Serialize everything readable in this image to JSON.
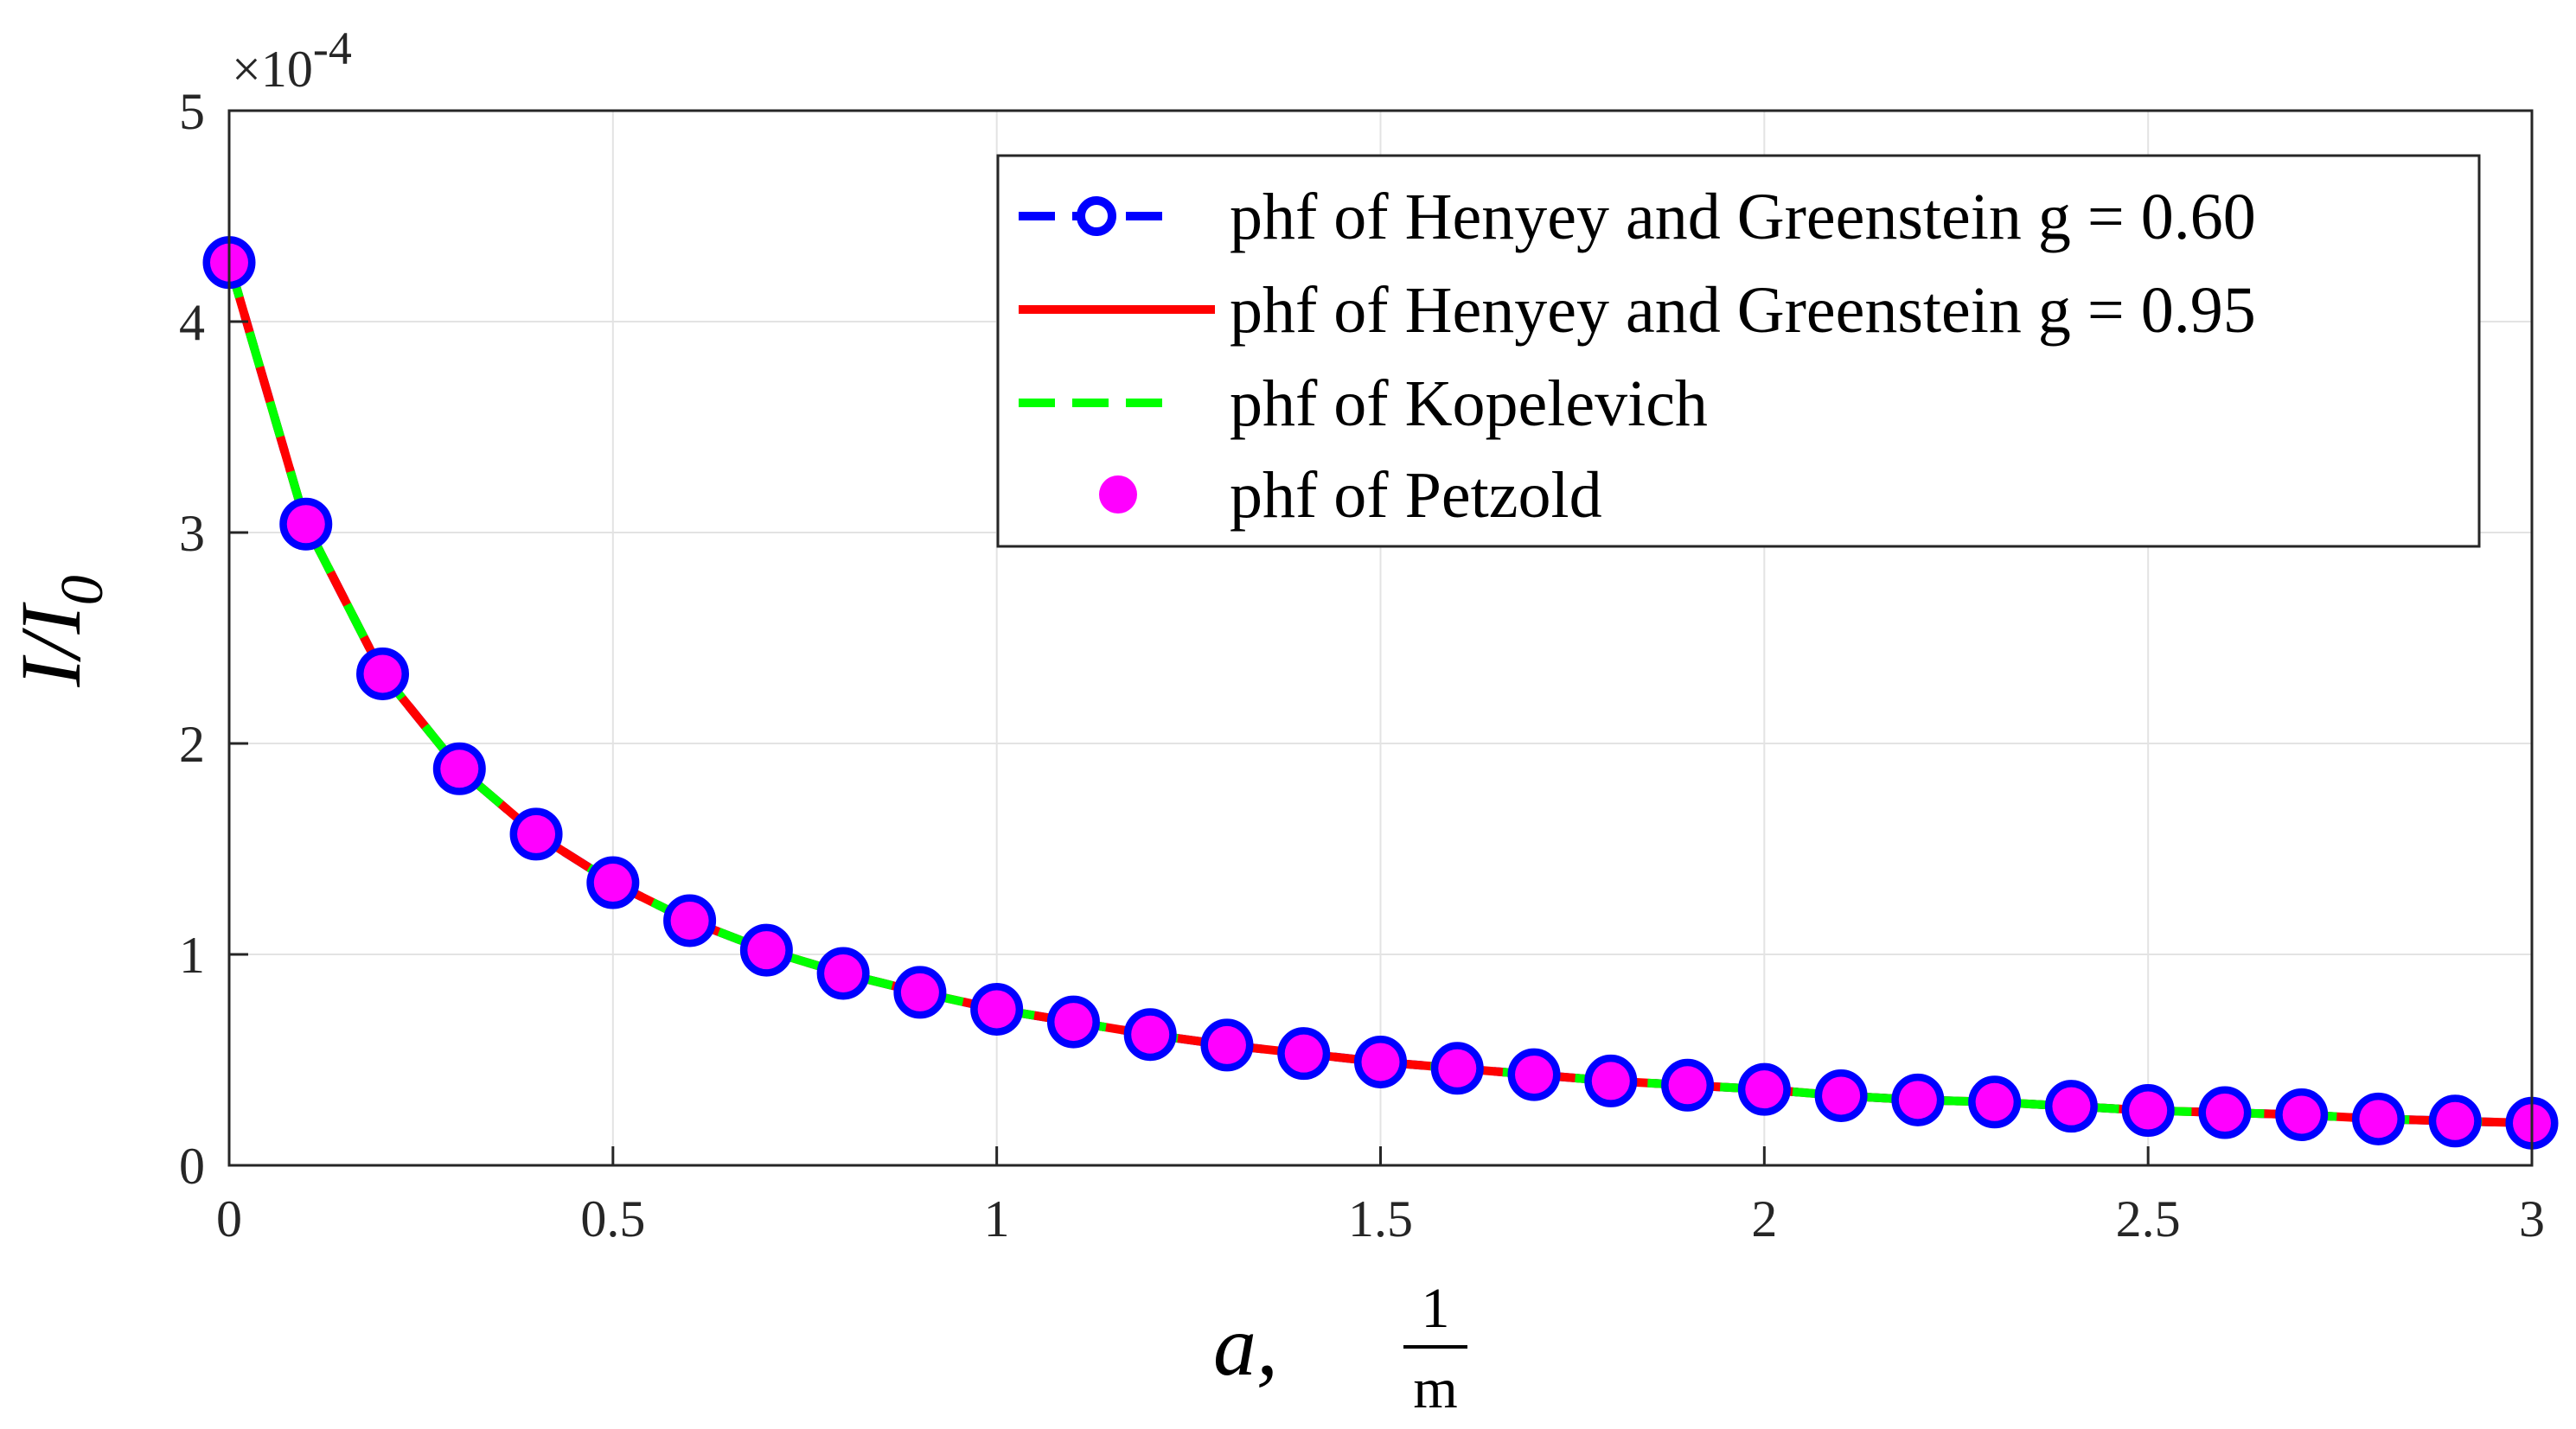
{
  "chart_data": {
    "type": "line",
    "xlabel": "a,",
    "xlabel_unit": {
      "numerator": "1",
      "denominator": "m"
    },
    "ylabel": "I/I",
    "ylabel_subscript": "0",
    "y_multiplier": "×10",
    "y_multiplier_exponent": "-4",
    "xlim": [
      0,
      3
    ],
    "ylim": [
      0,
      5
    ],
    "xticks": [
      0,
      0.5,
      1,
      1.5,
      2,
      2.5,
      3
    ],
    "xtick_labels": [
      "0",
      "0.5",
      "1",
      "1.5",
      "2",
      "2.5",
      "3"
    ],
    "yticks": [
      0,
      1,
      2,
      3,
      4,
      5
    ],
    "ytick_labels": [
      "0",
      "1",
      "2",
      "3",
      "4",
      "5"
    ],
    "grid": true,
    "legend_position": "top-right",
    "x": [
      0,
      0.1,
      0.2,
      0.3,
      0.4,
      0.5,
      0.6,
      0.7,
      0.8,
      0.9,
      1.0,
      1.1,
      1.2,
      1.3,
      1.4,
      1.5,
      1.6,
      1.7,
      1.8,
      1.9,
      2.0,
      2.1,
      2.2,
      2.3,
      2.4,
      2.5,
      2.6,
      2.7,
      2.8,
      2.9,
      3.0
    ],
    "series": [
      {
        "name": "phf of Henyey and Greenstein g = 0.60",
        "style": "dashed-circle-marker",
        "color": "#0000ff",
        "values": [
          4.28,
          3.04,
          2.33,
          1.88,
          1.57,
          1.34,
          1.16,
          1.02,
          0.91,
          0.82,
          0.74,
          0.68,
          0.62,
          0.57,
          0.53,
          0.49,
          0.46,
          0.43,
          0.4,
          0.38,
          0.36,
          0.33,
          0.31,
          0.3,
          0.28,
          0.26,
          0.25,
          0.24,
          0.22,
          0.21,
          0.2
        ]
      },
      {
        "name": "phf of Henyey and Greenstein g = 0.95",
        "style": "solid",
        "color": "#ff0000",
        "values": [
          4.28,
          3.04,
          2.33,
          1.88,
          1.57,
          1.34,
          1.16,
          1.02,
          0.91,
          0.82,
          0.74,
          0.68,
          0.62,
          0.57,
          0.53,
          0.49,
          0.46,
          0.43,
          0.4,
          0.38,
          0.36,
          0.33,
          0.31,
          0.3,
          0.28,
          0.26,
          0.25,
          0.24,
          0.22,
          0.21,
          0.2
        ]
      },
      {
        "name": "phf of Kopelevich",
        "style": "dashed",
        "color": "#00ff00",
        "values": [
          4.28,
          3.04,
          2.33,
          1.88,
          1.57,
          1.34,
          1.16,
          1.02,
          0.91,
          0.82,
          0.74,
          0.68,
          0.62,
          0.57,
          0.53,
          0.49,
          0.46,
          0.43,
          0.4,
          0.38,
          0.36,
          0.33,
          0.31,
          0.3,
          0.28,
          0.26,
          0.25,
          0.24,
          0.22,
          0.21,
          0.2
        ]
      },
      {
        "name": "phf of Petzold",
        "style": "filled-circle-marker",
        "color": "#ff00ff",
        "values": [
          4.28,
          3.04,
          2.33,
          1.88,
          1.57,
          1.34,
          1.16,
          1.02,
          0.91,
          0.82,
          0.74,
          0.68,
          0.62,
          0.57,
          0.53,
          0.49,
          0.46,
          0.43,
          0.4,
          0.38,
          0.36,
          0.33,
          0.31,
          0.3,
          0.28,
          0.26,
          0.25,
          0.24,
          0.22,
          0.21,
          0.2
        ]
      }
    ]
  }
}
